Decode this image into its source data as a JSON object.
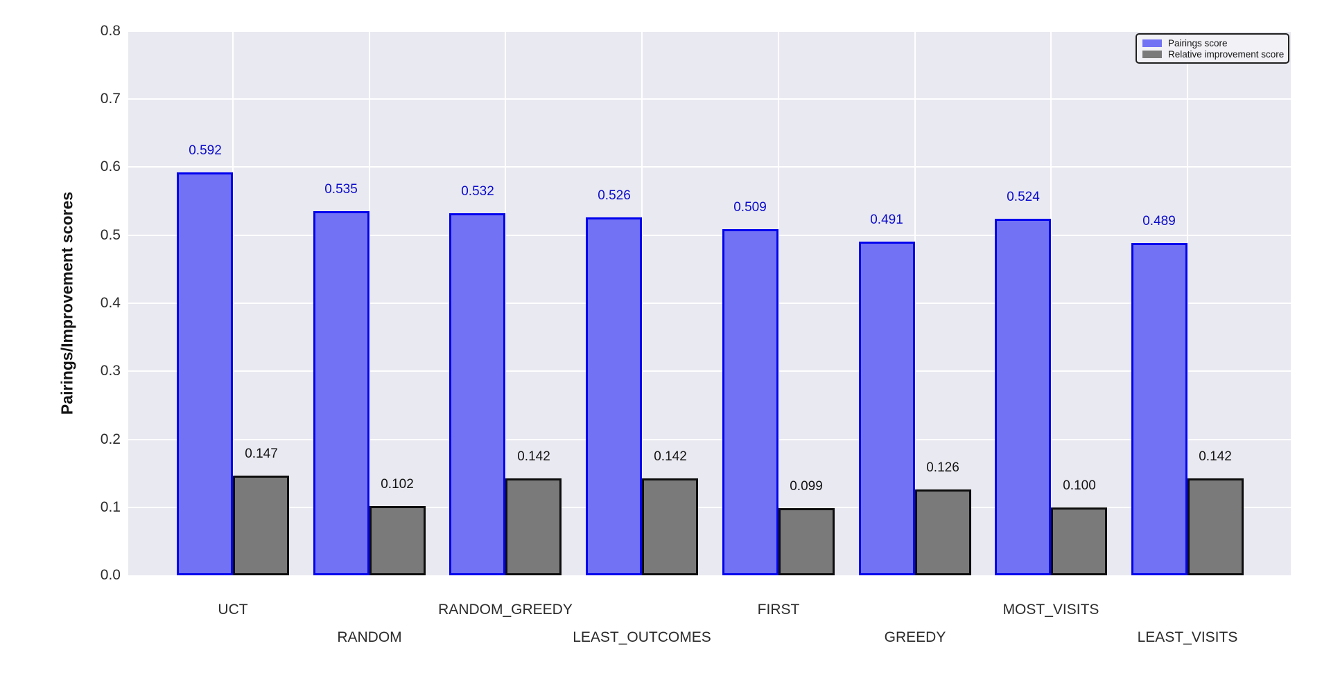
{
  "chart_data": {
    "type": "bar",
    "categories": [
      "UCT",
      "RANDOM",
      "RANDOM_GREEDY",
      "LEAST_OUTCOMES",
      "FIRST",
      "GREEDY",
      "MOST_VISITS",
      "LEAST_VISITS"
    ],
    "series": [
      {
        "name": "Pairings score",
        "values": [
          0.592,
          0.535,
          0.532,
          0.526,
          0.509,
          0.491,
          0.524,
          0.489
        ],
        "fill_color": "#7272f5",
        "edge_color": "#0202ee",
        "label_color": "#0b0bcc"
      },
      {
        "name": "Relative improvement score",
        "values": [
          0.147,
          0.102,
          0.142,
          0.142,
          0.099,
          0.126,
          0.1,
          0.142
        ],
        "fill_color": "#7a7a7a",
        "edge_color": "#0d0d0d",
        "label_color": "#141414"
      }
    ],
    "title": "",
    "xlabel": "",
    "ylabel": "Pairings/Improvement scores",
    "ylim": [
      0.0,
      0.8
    ],
    "ytick_labels": [
      "0.0",
      "0.1",
      "0.2",
      "0.3",
      "0.4",
      "0.5",
      "0.6",
      "0.7",
      "0.8"
    ],
    "value_label_decimals": 3,
    "grid": true,
    "legend_position": "upper right",
    "background_color": "#e9e9f1",
    "gridline_color": "#ffffff"
  }
}
